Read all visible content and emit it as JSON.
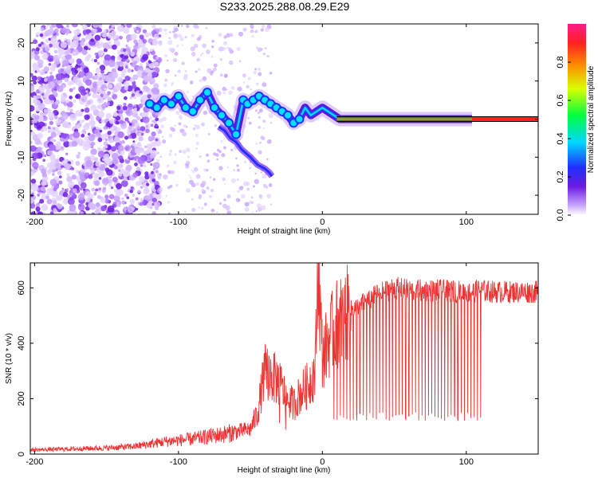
{
  "title": "S233.2025.288.08.29.E29",
  "chart_data": [
    {
      "type": "heatmap",
      "xlabel": "Height of straight line (km)",
      "ylabel": "Frequency (Hz)",
      "xlim": [
        -203,
        150
      ],
      "ylim": [
        -25,
        25
      ],
      "xticks": [
        -200,
        -100,
        0,
        100
      ],
      "yticks": [
        -20,
        -10,
        0,
        10,
        20
      ],
      "colorbar": {
        "label": "Normalized spectral amplitude",
        "range": [
          0,
          1
        ],
        "ticks": [
          0.0,
          0.2,
          0.4,
          0.6,
          0.8
        ]
      },
      "ridge": {
        "x": [
          -120,
          -115,
          -110,
          -105,
          -100,
          -95,
          -90,
          -85,
          -80,
          -75,
          -70,
          -65,
          -60,
          -55,
          -52,
          -48,
          -44,
          -40,
          -36,
          -32,
          -28,
          -24,
          -20,
          -16,
          -12,
          -8,
          -4,
          0,
          4,
          8,
          12,
          20,
          40,
          60,
          80,
          104
        ],
        "y": [
          4,
          3,
          5,
          4,
          6,
          3,
          2,
          5,
          7,
          3,
          1,
          -1,
          -4,
          5,
          4,
          5,
          6,
          5,
          4,
          3,
          2,
          1,
          -1,
          0,
          3,
          1,
          2,
          3,
          2,
          1,
          0,
          0,
          0,
          0,
          0,
          0
        ]
      },
      "secondary_track": {
        "x": [
          -72,
          -68,
          -64,
          -60,
          -56,
          -50,
          -45,
          -40,
          -37,
          -35
        ],
        "y": [
          -2,
          -3,
          -5,
          -6,
          -8,
          -10,
          -12,
          -13,
          -14,
          -15
        ]
      },
      "reference_line": {
        "x_start": 10,
        "x_end": 150,
        "y": 0
      }
    },
    {
      "type": "line",
      "xlabel": "Height of straight line (km)",
      "ylabel": "SNR (10 * v/v)",
      "xlim": [
        -203,
        150
      ],
      "ylim": [
        0,
        690
      ],
      "xticks": [
        -200,
        -100,
        0,
        100
      ],
      "yticks": [
        0,
        200,
        400,
        600
      ],
      "series": [
        {
          "name": "SNR",
          "color": "#ee3333",
          "envelope_x": [
            -203,
            -180,
            -150,
            -130,
            -110,
            -90,
            -70,
            -60,
            -50,
            -45,
            -40,
            -35,
            -30,
            -25,
            -20,
            -15,
            -10,
            -5,
            -3,
            0,
            5,
            10,
            20,
            30,
            40,
            50,
            60,
            80,
            100,
            110,
            120,
            150
          ],
          "envelope_y": [
            15,
            18,
            22,
            28,
            45,
            55,
            70,
            80,
            90,
            150,
            300,
            280,
            260,
            200,
            180,
            220,
            250,
            300,
            690,
            350,
            420,
            470,
            520,
            550,
            580,
            600,
            590,
            590,
            585,
            590,
            585,
            585
          ],
          "dropouts": {
            "x_start": 8,
            "x_end": 110,
            "count": 45,
            "min_value": 120
          }
        }
      ]
    }
  ]
}
